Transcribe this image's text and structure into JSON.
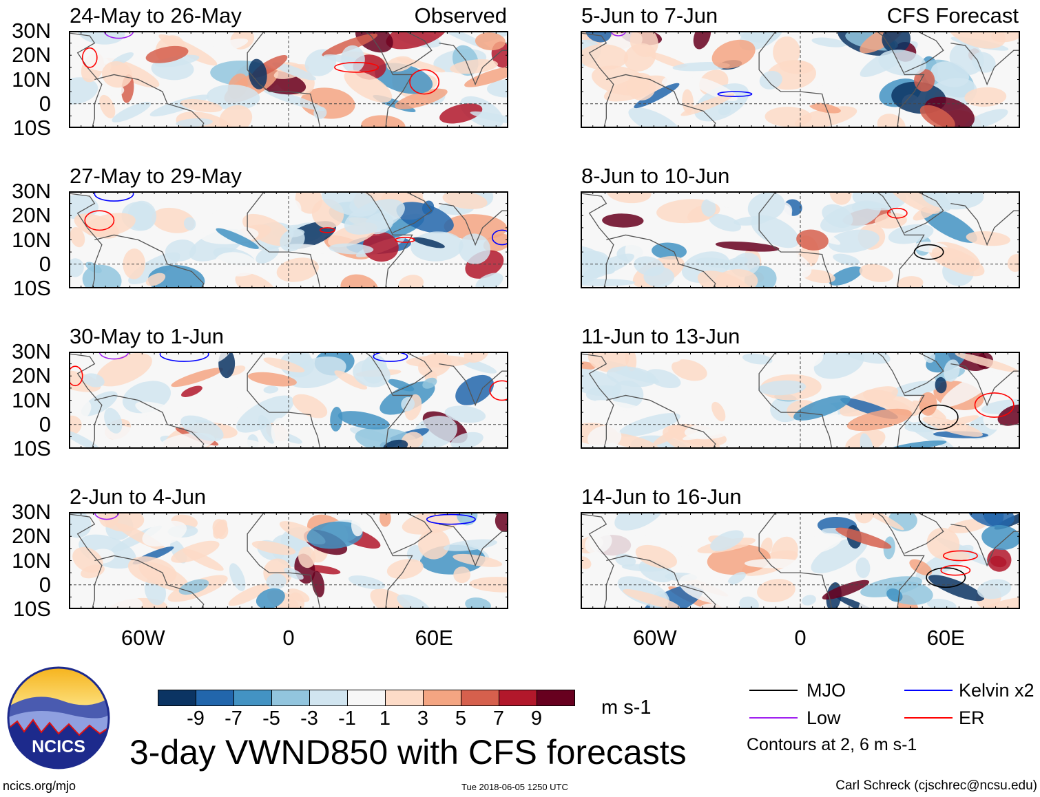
{
  "labels": {
    "observed": "Observed",
    "forecast": "CFS Forecast"
  },
  "lat_ticks": [
    "30N",
    "20N",
    "10N",
    "0",
    "10S"
  ],
  "lon_ticks": [
    "60W",
    "0",
    "60E"
  ],
  "panels": [
    {
      "title": "24-May to 26-May",
      "col": 0,
      "row": 0,
      "seed": 3,
      "contours": [
        {
          "type": "ER",
          "lon": -82,
          "lat": 19,
          "rx": 3,
          "ry": 4
        },
        {
          "type": "ER",
          "lon": 28,
          "lat": 15,
          "rx": 9,
          "ry": 2
        },
        {
          "type": "ER",
          "lon": 56,
          "lat": 9,
          "rx": 6,
          "ry": 5
        },
        {
          "type": "Low",
          "lon": -70,
          "lat": 30,
          "rx": 6,
          "ry": 3
        }
      ]
    },
    {
      "title": "27-May to 29-May",
      "col": 0,
      "row": 1,
      "seed": 7,
      "contours": [
        {
          "type": "ER",
          "lon": -78,
          "lat": 18,
          "rx": 6,
          "ry": 4
        },
        {
          "type": "Kelvin",
          "lon": -72,
          "lat": 29,
          "rx": 8,
          "ry": 3
        },
        {
          "type": "ER",
          "lon": 16,
          "lat": 14,
          "rx": 3,
          "ry": 1
        },
        {
          "type": "ER",
          "lon": 48,
          "lat": 10,
          "rx": 4,
          "ry": 1
        },
        {
          "type": "Kelvin",
          "lon": 88,
          "lat": 11,
          "rx": 4,
          "ry": 3
        }
      ]
    },
    {
      "title": "30-May to 1-Jun",
      "col": 0,
      "row": 2,
      "seed": 11,
      "contours": [
        {
          "type": "Kelvin",
          "lon": -43,
          "lat": 29,
          "rx": 10,
          "ry": 3
        },
        {
          "type": "Low",
          "lon": -72,
          "lat": 30,
          "rx": 6,
          "ry": 3
        },
        {
          "type": "Kelvin",
          "lon": 42,
          "lat": 28,
          "rx": 7,
          "ry": 2
        },
        {
          "type": "ER",
          "lon": -88,
          "lat": 20,
          "rx": 3,
          "ry": 4
        },
        {
          "type": "ER",
          "lon": 88,
          "lat": 14,
          "rx": 5,
          "ry": 4
        }
      ]
    },
    {
      "title": "2-Jun to 4-Jun",
      "col": 0,
      "row": 3,
      "seed": 13,
      "contours": [
        {
          "type": "Kelvin",
          "lon": 67,
          "lat": 27,
          "rx": 10,
          "ry": 2
        },
        {
          "type": "Low",
          "lon": -75,
          "lat": 30,
          "rx": 5,
          "ry": 3
        }
      ]
    },
    {
      "title": "5-Jun to 7-Jun",
      "col": 1,
      "row": 0,
      "seed": 17,
      "contours": [
        {
          "type": "Kelvin",
          "lon": -27,
          "lat": 4,
          "rx": 7,
          "ry": 1
        },
        {
          "type": "Low",
          "lon": -75,
          "lat": 30,
          "rx": 3,
          "ry": 2
        }
      ]
    },
    {
      "title": "8-Jun to 10-Jun",
      "col": 1,
      "row": 1,
      "seed": 19,
      "contours": [
        {
          "type": "MJO",
          "lon": 53,
          "lat": 5,
          "rx": 6,
          "ry": 3
        },
        {
          "type": "ER",
          "lon": 40,
          "lat": 21,
          "rx": 4,
          "ry": 2
        }
      ]
    },
    {
      "title": "11-Jun to 13-Jun",
      "col": 1,
      "row": 2,
      "seed": 23,
      "contours": [
        {
          "type": "MJO",
          "lon": 57,
          "lat": 3,
          "rx": 8,
          "ry": 5
        },
        {
          "type": "ER",
          "lon": 80,
          "lat": 8,
          "rx": 8,
          "ry": 5
        }
      ]
    },
    {
      "title": "14-Jun to 16-Jun",
      "col": 1,
      "row": 3,
      "seed": 29,
      "contours": [
        {
          "type": "MJO",
          "lon": 60,
          "lat": 3,
          "rx": 8,
          "ry": 4
        },
        {
          "type": "ER",
          "lon": 66,
          "lat": 12,
          "rx": 7,
          "ry": 2
        },
        {
          "type": "ER",
          "lon": 64,
          "lat": 6,
          "rx": 6,
          "ry": 2
        }
      ]
    }
  ],
  "colorbar": {
    "colors": [
      "#0b3463",
      "#2266ac",
      "#4393c3",
      "#92c5de",
      "#d1e5f0",
      "#f7f7f7",
      "#fddbc7",
      "#f4a582",
      "#d6604d",
      "#b2182b",
      "#67001f"
    ],
    "ticks": [
      "-9",
      "-7",
      "-5",
      "-3",
      "-1",
      "1",
      "3",
      "5",
      "7",
      "9"
    ],
    "units": "m s-1"
  },
  "legend": {
    "items": [
      {
        "label": "MJO",
        "color": "#000000"
      },
      {
        "label": "Kelvin x2",
        "color": "#0000ff"
      },
      {
        "label": "Low",
        "color": "#a020f0"
      },
      {
        "label": "ER",
        "color": "#ff0000"
      }
    ],
    "note": "Contours at 2, 6 m s-1"
  },
  "contour_colors": {
    "MJO": "#000000",
    "Kelvin": "#0000ff",
    "Low": "#a020f0",
    "ER": "#ff0000"
  },
  "main_title": "3-day VWND850 with CFS forecasts",
  "logo_text": "NCICS",
  "footer": {
    "url": "ncics.org/mjo",
    "timestamp": "Tue 2018-06-05 1250 UTC",
    "credit": "Carl Schreck (cjschrec@ncsu.edu)"
  }
}
